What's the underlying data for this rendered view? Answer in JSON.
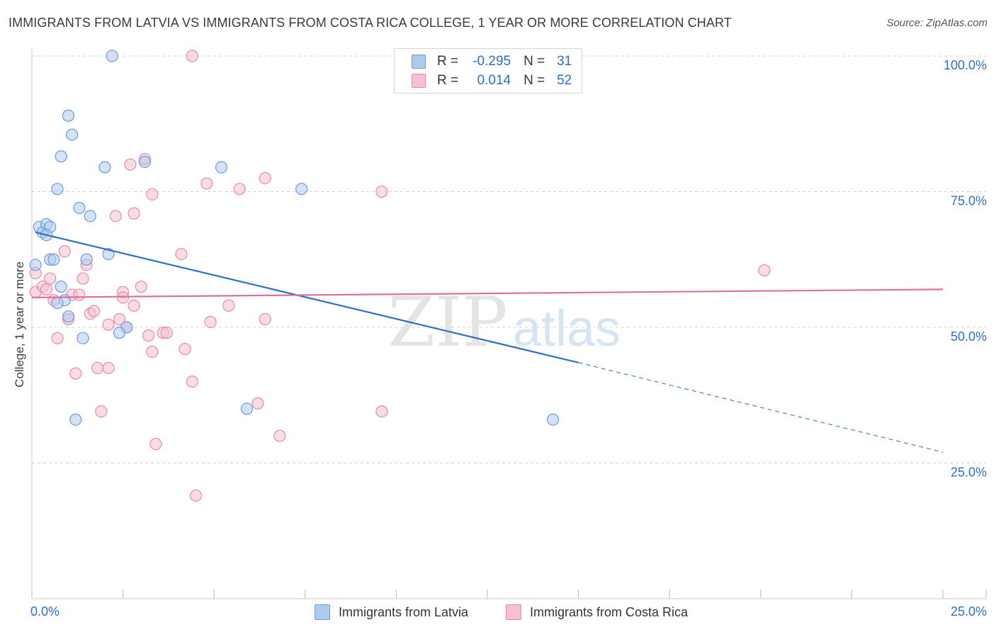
{
  "title": "IMMIGRANTS FROM LATVIA VS IMMIGRANTS FROM COSTA RICA COLLEGE, 1 YEAR OR MORE CORRELATION CHART",
  "source": "Source: ZipAtlas.com",
  "watermark": {
    "zip": "ZIP",
    "atlas": "atlas"
  },
  "colors": {
    "latvia_fill": "#aecbef",
    "latvia_stroke": "#6b9bd9",
    "latvia_line": "#2e6fca",
    "costa_fill": "#f7c0d0",
    "costa_stroke": "#e88aaa",
    "costa_line": "#e0709a",
    "grid": "#d0d0d0",
    "tick_label": "#2e6fca"
  },
  "legend": {
    "rows": [
      {
        "r_label": "R =",
        "r_value": "-0.295",
        "n_label": "N =",
        "n_value": "31"
      },
      {
        "r_label": "R =",
        "r_value": "0.014",
        "n_label": "N =",
        "n_value": "52"
      }
    ]
  },
  "chart_data": {
    "type": "scatter",
    "xlabel": "",
    "ylabel": "College, 1 year or more",
    "xlim": [
      0,
      25
    ],
    "ylim": [
      0,
      100
    ],
    "x_tick_labels": [
      {
        "value": 0,
        "label": "0.0%"
      },
      {
        "value": 25,
        "label": "25.0%"
      }
    ],
    "y_tick_labels": [
      {
        "value": 100,
        "label": "100.0%"
      },
      {
        "value": 75,
        "label": "75.0%"
      },
      {
        "value": 50,
        "label": "50.0%"
      },
      {
        "value": 25,
        "label": "25.0%"
      }
    ],
    "series": [
      {
        "name": "Immigrants from Latvia",
        "r": -0.295,
        "n": 31,
        "points": [
          [
            0.1,
            61.5
          ],
          [
            0.2,
            68.5
          ],
          [
            0.3,
            67.5
          ],
          [
            0.4,
            69.0
          ],
          [
            0.5,
            68.5
          ],
          [
            0.4,
            67.0
          ],
          [
            0.5,
            62.5
          ],
          [
            0.6,
            62.5
          ],
          [
            0.8,
            57.5
          ],
          [
            0.9,
            55.0
          ],
          [
            0.7,
            54.5
          ],
          [
            1.0,
            52.0
          ],
          [
            1.0,
            89.0
          ],
          [
            1.1,
            85.5
          ],
          [
            0.8,
            81.5
          ],
          [
            0.7,
            75.5
          ],
          [
            1.3,
            72.0
          ],
          [
            1.6,
            70.5
          ],
          [
            1.5,
            62.5
          ],
          [
            1.4,
            48.0
          ],
          [
            1.2,
            33.0
          ],
          [
            2.1,
            63.5
          ],
          [
            2.0,
            79.5
          ],
          [
            2.2,
            100.0
          ],
          [
            2.6,
            50.0
          ],
          [
            2.4,
            49.0
          ],
          [
            3.1,
            80.5
          ],
          [
            5.2,
            79.5
          ],
          [
            7.4,
            75.5
          ],
          [
            5.9,
            35.0
          ],
          [
            14.3,
            33.0
          ]
        ],
        "trend": {
          "x_start": 0.1,
          "y_start": 67.5,
          "x_solid_end": 15.0,
          "y_solid_end": 43.5,
          "x_end": 25.0,
          "y_end": 27.0
        }
      },
      {
        "name": "Immigrants from Costa Rica",
        "r": 0.014,
        "n": 52,
        "points": [
          [
            0.1,
            60.0
          ],
          [
            0.1,
            56.5
          ],
          [
            0.3,
            57.5
          ],
          [
            0.4,
            57.0
          ],
          [
            0.5,
            59.0
          ],
          [
            0.6,
            55.0
          ],
          [
            0.7,
            48.0
          ],
          [
            0.9,
            64.0
          ],
          [
            1.0,
            51.5
          ],
          [
            1.1,
            56.0
          ],
          [
            1.2,
            41.5
          ],
          [
            1.3,
            56.0
          ],
          [
            1.4,
            59.0
          ],
          [
            1.5,
            61.5
          ],
          [
            1.6,
            52.5
          ],
          [
            1.7,
            53.0
          ],
          [
            1.8,
            42.5
          ],
          [
            1.9,
            34.5
          ],
          [
            2.1,
            50.5
          ],
          [
            2.1,
            42.5
          ],
          [
            2.3,
            70.5
          ],
          [
            2.4,
            51.5
          ],
          [
            2.5,
            56.5
          ],
          [
            2.5,
            55.5
          ],
          [
            2.6,
            50.0
          ],
          [
            2.7,
            80.0
          ],
          [
            2.8,
            54.0
          ],
          [
            2.8,
            71.0
          ],
          [
            3.0,
            57.5
          ],
          [
            3.1,
            81.0
          ],
          [
            3.2,
            48.5
          ],
          [
            3.3,
            74.5
          ],
          [
            3.3,
            45.5
          ],
          [
            3.4,
            28.5
          ],
          [
            3.6,
            49.0
          ],
          [
            3.7,
            49.0
          ],
          [
            4.2,
            46.0
          ],
          [
            4.1,
            63.5
          ],
          [
            4.4,
            40.0
          ],
          [
            4.5,
            19.0
          ],
          [
            4.8,
            76.5
          ],
          [
            4.9,
            51.0
          ],
          [
            5.4,
            54.0
          ],
          [
            5.7,
            75.5
          ],
          [
            6.2,
            36.0
          ],
          [
            6.4,
            77.5
          ],
          [
            6.4,
            51.5
          ],
          [
            6.8,
            30.0
          ],
          [
            9.6,
            34.5
          ],
          [
            9.6,
            75.0
          ],
          [
            4.4,
            100.0
          ],
          [
            20.1,
            60.5
          ]
        ],
        "trend": {
          "x_start": 0.0,
          "y_start": 55.5,
          "x_end": 25.0,
          "y_end": 57.0
        }
      }
    ]
  }
}
